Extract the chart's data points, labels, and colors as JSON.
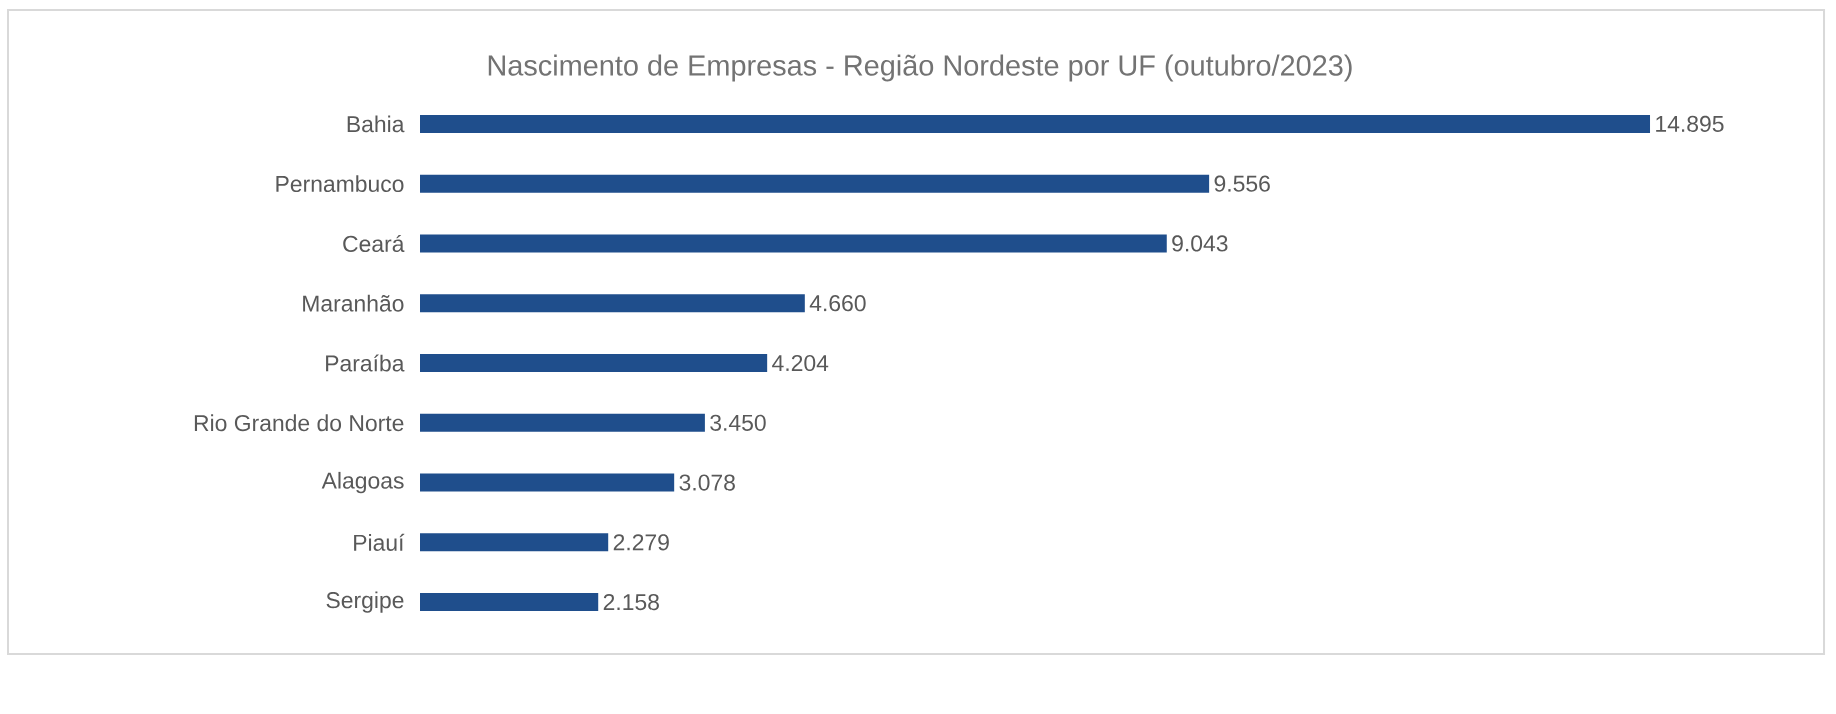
{
  "chart_data": {
    "type": "bar",
    "orientation": "horizontal",
    "title": "Nascimento de Empresas  - Região Nordeste por UF (outubro/2023)",
    "categories": [
      "Bahia",
      "Pernambuco",
      "Ceará",
      "Maranhão",
      "Paraíba",
      "Rio Grande do Norte",
      "Alagoas",
      "Piauí",
      "Sergipe"
    ],
    "values": [
      14895,
      9556,
      9043,
      4660,
      4204,
      3450,
      3078,
      2279,
      2158
    ],
    "value_labels": [
      "14.895",
      "9.556",
      "9.043",
      "4.660",
      "4.204",
      "3.450",
      "3.078",
      "2.279",
      "2.158"
    ],
    "color": "#1f4e8c"
  }
}
